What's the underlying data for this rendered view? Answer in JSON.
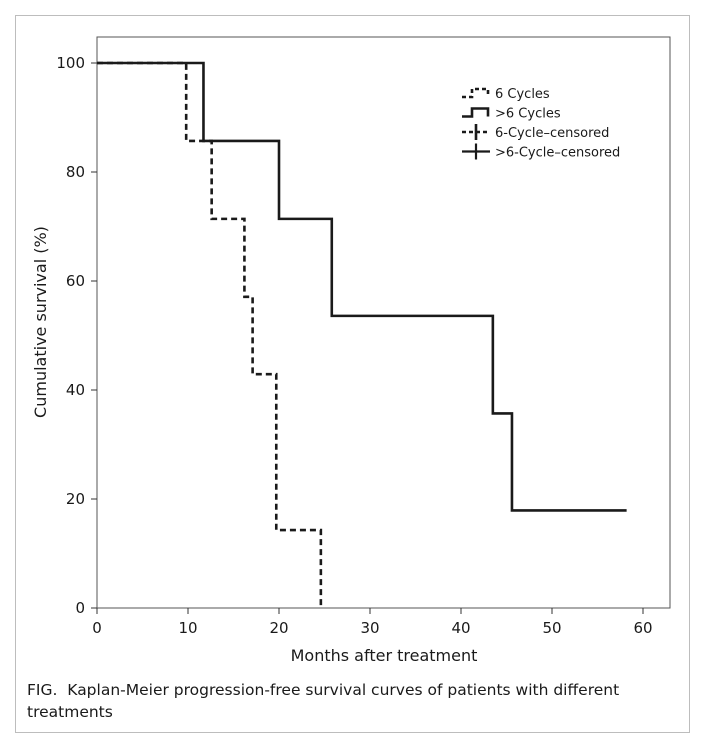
{
  "figure": {
    "caption_label": "FIG.",
    "caption_text": "Kaplan-Meier progression-free survival curves of patients with different treatments"
  },
  "chart_data": {
    "type": "line",
    "title": "",
    "xlabel": "Months after treatment",
    "ylabel": "Cumulative survival (%)",
    "xlim": [
      0,
      63
    ],
    "ylim": [
      0,
      105
    ],
    "xticks": [
      0,
      10,
      20,
      30,
      40,
      50,
      60
    ],
    "yticks": [
      0,
      20,
      40,
      60,
      80,
      100
    ],
    "grid": false,
    "legend_position": "top-right",
    "series": [
      {
        "name": "6 Cycles",
        "style": "dashed",
        "color": "#1a1a1a",
        "step_x": [
          0,
          9.8,
          12.6,
          16.2,
          17.1,
          19.7,
          24.6
        ],
        "step_y": [
          100,
          85.7,
          71.4,
          57.1,
          42.9,
          14.3,
          0
        ],
        "end_x": 24.6
      },
      {
        "name": ">6 Cycles",
        "style": "solid",
        "color": "#1a1a1a",
        "step_x": [
          0,
          11.7,
          20.0,
          25.8,
          43.5,
          45.6
        ],
        "step_y": [
          100,
          85.7,
          71.4,
          53.6,
          35.7,
          17.9
        ],
        "end_x": 58.2
      }
    ],
    "legend": [
      {
        "label": "6 Cycles",
        "kind": "dashed-line"
      },
      {
        "label": ">6 Cycles",
        "kind": "solid-line"
      },
      {
        "label": "6-Cycle–censored",
        "kind": "dashed-censor"
      },
      {
        "label": ">6-Cycle–censored",
        "kind": "solid-censor"
      }
    ]
  }
}
